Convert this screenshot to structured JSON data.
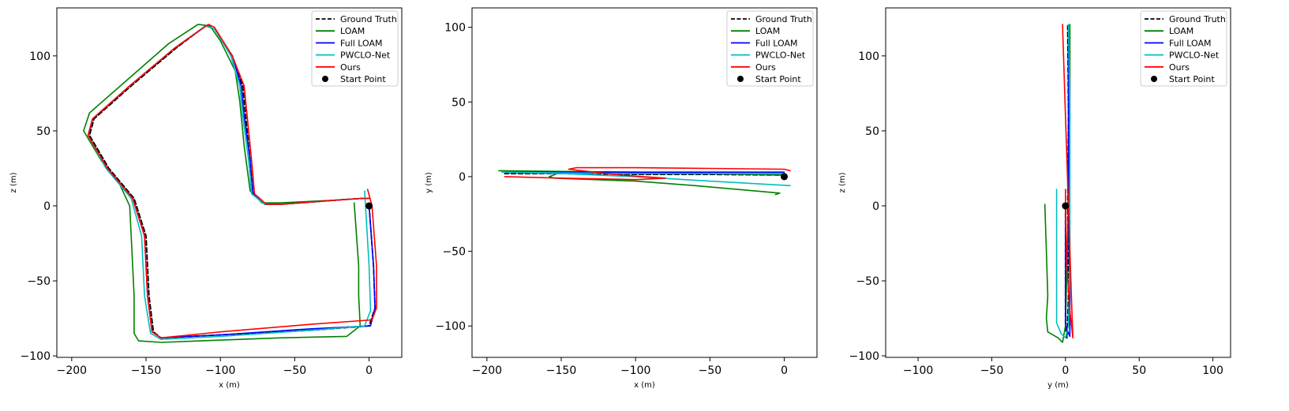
{
  "legend": {
    "entries": [
      {
        "name": "Ground Truth",
        "color": "#000000",
        "style": "dashed"
      },
      {
        "name": "LOAM",
        "color": "#008000",
        "style": "solid"
      },
      {
        "name": "Full LOAM",
        "color": "#0000ff",
        "style": "solid"
      },
      {
        "name": "PWCLO-Net",
        "color": "#00bfbf",
        "style": "solid"
      },
      {
        "name": "Ours",
        "color": "#ff0000",
        "style": "solid"
      },
      {
        "name": "Start Point",
        "color": "#000000",
        "style": "marker"
      }
    ]
  },
  "chart_data": [
    {
      "type": "line",
      "xlabel": "x (m)",
      "ylabel": "z (m)",
      "xlim": [
        -210,
        22
      ],
      "ylim": [
        -101,
        132
      ],
      "xticks": [
        -200,
        -150,
        -100,
        -50,
        0
      ],
      "yticks": [
        -100,
        -50,
        0,
        50,
        100
      ],
      "legend_position": "top-right",
      "start_point": [
        0,
        0
      ],
      "series": [
        {
          "name": "Ground Truth",
          "points": [
            [
              0,
              0
            ],
            [
              3,
              -40
            ],
            [
              4,
              -68
            ],
            [
              0,
              -80
            ],
            [
              -40,
              -83
            ],
            [
              -100,
              -86
            ],
            [
              -140,
              -88
            ],
            [
              -145,
              -84
            ],
            [
              -148,
              -60
            ],
            [
              -150,
              -20
            ],
            [
              -158,
              5
            ],
            [
              -175,
              25
            ],
            [
              -188,
              47
            ],
            [
              -185,
              58
            ],
            [
              -160,
              80
            ],
            [
              -130,
              105
            ],
            [
              -110,
              120
            ],
            [
              -104,
              118
            ],
            [
              -92,
              100
            ],
            [
              -85,
              80
            ],
            [
              -83,
              60
            ],
            [
              -80,
              30
            ],
            [
              -78,
              8
            ],
            [
              -70,
              1
            ],
            [
              -60,
              1
            ],
            [
              -20,
              4
            ],
            [
              -5,
              5
            ],
            [
              0,
              5
            ]
          ]
        },
        {
          "name": "LOAM",
          "points": [
            [
              -10,
              2
            ],
            [
              -7,
              -40
            ],
            [
              -7,
              -60
            ],
            [
              -6,
              -80
            ],
            [
              -15,
              -87
            ],
            [
              -60,
              -88
            ],
            [
              -140,
              -91
            ],
            [
              -155,
              -90
            ],
            [
              -158,
              -85
            ],
            [
              -158,
              -60
            ],
            [
              -160,
              -20
            ],
            [
              -161,
              0
            ],
            [
              -168,
              15
            ],
            [
              -180,
              30
            ],
            [
              -192,
              50
            ],
            [
              -188,
              62
            ],
            [
              -165,
              82
            ],
            [
              -135,
              108
            ],
            [
              -115,
              121
            ],
            [
              -107,
              120
            ],
            [
              -100,
              110
            ],
            [
              -90,
              90
            ],
            [
              -87,
              70
            ],
            [
              -84,
              40
            ],
            [
              -80,
              10
            ],
            [
              -72,
              2
            ],
            [
              -60,
              2
            ],
            [
              -20,
              4
            ],
            [
              -5,
              5
            ],
            [
              0,
              5
            ]
          ]
        },
        {
          "name": "Full LOAM",
          "points": [
            [
              0,
              0
            ],
            [
              3,
              -40
            ],
            [
              4,
              -68
            ],
            [
              1,
              -80
            ],
            [
              -40,
              -82
            ],
            [
              -100,
              -86
            ],
            [
              -140,
              -88
            ],
            [
              -146,
              -84
            ],
            [
              -149,
              -60
            ],
            [
              -151,
              -20
            ],
            [
              -159,
              5
            ],
            [
              -176,
              25
            ],
            [
              -189,
              47
            ],
            [
              -186,
              58
            ],
            [
              -161,
              80
            ],
            [
              -131,
              105
            ],
            [
              -110,
              120
            ],
            [
              -104,
              118
            ],
            [
              -92,
              100
            ],
            [
              -86,
              80
            ],
            [
              -84,
              60
            ],
            [
              -80,
              30
            ],
            [
              -78,
              8
            ],
            [
              -70,
              1
            ],
            [
              -60,
              1
            ],
            [
              -20,
              4
            ],
            [
              -5,
              5
            ],
            [
              0,
              5
            ]
          ]
        },
        {
          "name": "PWCLO-Net",
          "points": [
            [
              -3,
              10
            ],
            [
              0,
              -40
            ],
            [
              1,
              -70
            ],
            [
              -3,
              -80
            ],
            [
              -40,
              -83
            ],
            [
              -100,
              -87
            ],
            [
              -140,
              -89
            ],
            [
              -147,
              -85
            ],
            [
              -151,
              -60
            ],
            [
              -153,
              -20
            ],
            [
              -160,
              5
            ],
            [
              -177,
              25
            ],
            [
              -189,
              47
            ],
            [
              -186,
              58
            ],
            [
              -161,
              80
            ],
            [
              -131,
              105
            ],
            [
              -110,
              120
            ],
            [
              -104,
              118
            ],
            [
              -93,
              100
            ],
            [
              -87,
              80
            ],
            [
              -85,
              60
            ],
            [
              -81,
              30
            ],
            [
              -79,
              8
            ],
            [
              -70,
              1
            ],
            [
              -60,
              1
            ],
            [
              -20,
              4
            ],
            [
              -5,
              5
            ],
            [
              0,
              5
            ]
          ]
        },
        {
          "name": "Ours",
          "points": [
            [
              -1,
              11
            ],
            [
              2,
              0
            ],
            [
              5,
              -40
            ],
            [
              5,
              -68
            ],
            [
              2,
              -76
            ],
            [
              -40,
              -79
            ],
            [
              -100,
              -84
            ],
            [
              -140,
              -88
            ],
            [
              -146,
              -84
            ],
            [
              -149,
              -60
            ],
            [
              -151,
              -20
            ],
            [
              -159,
              5
            ],
            [
              -176,
              25
            ],
            [
              -189,
              47
            ],
            [
              -186,
              58
            ],
            [
              -161,
              80
            ],
            [
              -131,
              105
            ],
            [
              -108,
              121
            ],
            [
              -104,
              119
            ],
            [
              -92,
              100
            ],
            [
              -84,
              80
            ],
            [
              -82,
              60
            ],
            [
              -79,
              30
            ],
            [
              -77,
              8
            ],
            [
              -69,
              1
            ],
            [
              -60,
              1
            ],
            [
              -20,
              4
            ],
            [
              -5,
              5
            ],
            [
              0,
              5
            ]
          ]
        }
      ]
    },
    {
      "type": "line",
      "xlabel": "x (m)",
      "ylabel": "y (m)",
      "xlim": [
        -210,
        22
      ],
      "ylim": [
        -121,
        113
      ],
      "xticks": [
        -200,
        -150,
        -100,
        -50,
        0
      ],
      "yticks": [
        -100,
        -50,
        0,
        50,
        100
      ],
      "legend_position": "top-right",
      "start_point": [
        0,
        0
      ],
      "series": [
        {
          "name": "Ground Truth",
          "points": [
            [
              0,
              0
            ],
            [
              0,
              1
            ],
            [
              -50,
              1.5
            ],
            [
              -100,
              1.5
            ],
            [
              -150,
              2
            ],
            [
              -188,
              2
            ]
          ]
        },
        {
          "name": "LOAM",
          "points": [
            [
              -6,
              -12
            ],
            [
              -3,
              -11
            ],
            [
              -60,
              -6
            ],
            [
              -100,
              -3
            ],
            [
              -155,
              -1
            ],
            [
              -158,
              0
            ],
            [
              -150,
              3
            ],
            [
              -192,
              4
            ],
            [
              -150,
              3.5
            ],
            [
              -100,
              3
            ],
            [
              -50,
              2
            ],
            [
              0,
              1
            ]
          ]
        },
        {
          "name": "Full LOAM",
          "points": [
            [
              0,
              0
            ],
            [
              0,
              2
            ],
            [
              -50,
              2
            ],
            [
              -100,
              2.5
            ],
            [
              -150,
              2
            ],
            [
              -190,
              3
            ],
            [
              -150,
              3
            ],
            [
              -100,
              3
            ],
            [
              -50,
              3
            ],
            [
              0,
              3
            ]
          ]
        },
        {
          "name": "PWCLO-Net",
          "points": [
            [
              4,
              -6
            ],
            [
              -50,
              -3
            ],
            [
              -100,
              0
            ],
            [
              -150,
              2
            ],
            [
              -190,
              3
            ],
            [
              -150,
              2.5
            ],
            [
              -100,
              2
            ],
            [
              -50,
              2
            ],
            [
              0,
              2
            ]
          ]
        },
        {
          "name": "Ours",
          "points": [
            [
              4,
              4
            ],
            [
              0,
              5
            ],
            [
              -50,
              5.5
            ],
            [
              -100,
              6
            ],
            [
              -140,
              6
            ],
            [
              -145,
              5
            ],
            [
              -110,
              1
            ],
            [
              -80,
              -1
            ],
            [
              -100,
              -2
            ],
            [
              -150,
              -1
            ],
            [
              -188,
              0
            ]
          ]
        }
      ]
    },
    {
      "type": "line",
      "xlabel": "y (m)",
      "ylabel": "z (m)",
      "xlim": [
        -122,
        112
      ],
      "ylim": [
        -101,
        132
      ],
      "xticks": [
        -100,
        -50,
        0,
        50,
        100
      ],
      "yticks": [
        -100,
        -50,
        0,
        50,
        100
      ],
      "legend_position": "top-right",
      "start_point": [
        0,
        0
      ],
      "series": [
        {
          "name": "Ground Truth",
          "points": [
            [
              0,
              0
            ],
            [
              0,
              -40
            ],
            [
              0,
              -80
            ],
            [
              1,
              -88
            ],
            [
              2,
              -60
            ],
            [
              1.5,
              0
            ],
            [
              2,
              60
            ],
            [
              1.5,
              120
            ]
          ]
        },
        {
          "name": "LOAM",
          "points": [
            [
              -14,
              1
            ],
            [
              -13,
              -30
            ],
            [
              -12,
              -60
            ],
            [
              -13,
              -75
            ],
            [
              -12,
              -84
            ],
            [
              -5,
              -88
            ],
            [
              -2,
              -91
            ],
            [
              0,
              -80
            ],
            [
              1,
              -40
            ],
            [
              2,
              0
            ],
            [
              3,
              60
            ],
            [
              3,
              121
            ]
          ]
        },
        {
          "name": "Full LOAM",
          "points": [
            [
              0,
              0
            ],
            [
              0,
              -40
            ],
            [
              0,
              -80
            ],
            [
              3,
              -87
            ],
            [
              3,
              -60
            ],
            [
              2,
              0
            ],
            [
              2,
              60
            ],
            [
              2,
              120
            ]
          ]
        },
        {
          "name": "PWCLO-Net",
          "points": [
            [
              -6,
              11
            ],
            [
              -6,
              -40
            ],
            [
              -6,
              -78
            ],
            [
              -3,
              -85
            ],
            [
              0,
              -88
            ],
            [
              2,
              -80
            ],
            [
              3,
              -40
            ],
            [
              3,
              0
            ],
            [
              3,
              60
            ],
            [
              2,
              121
            ]
          ]
        },
        {
          "name": "Ours",
          "points": [
            [
              0,
              11
            ],
            [
              0,
              0
            ],
            [
              1,
              -40
            ],
            [
              3,
              -70
            ],
            [
              5,
              -88
            ],
            [
              4,
              -60
            ],
            [
              2,
              0
            ],
            [
              0,
              60
            ],
            [
              -2,
              121
            ]
          ]
        }
      ]
    }
  ]
}
